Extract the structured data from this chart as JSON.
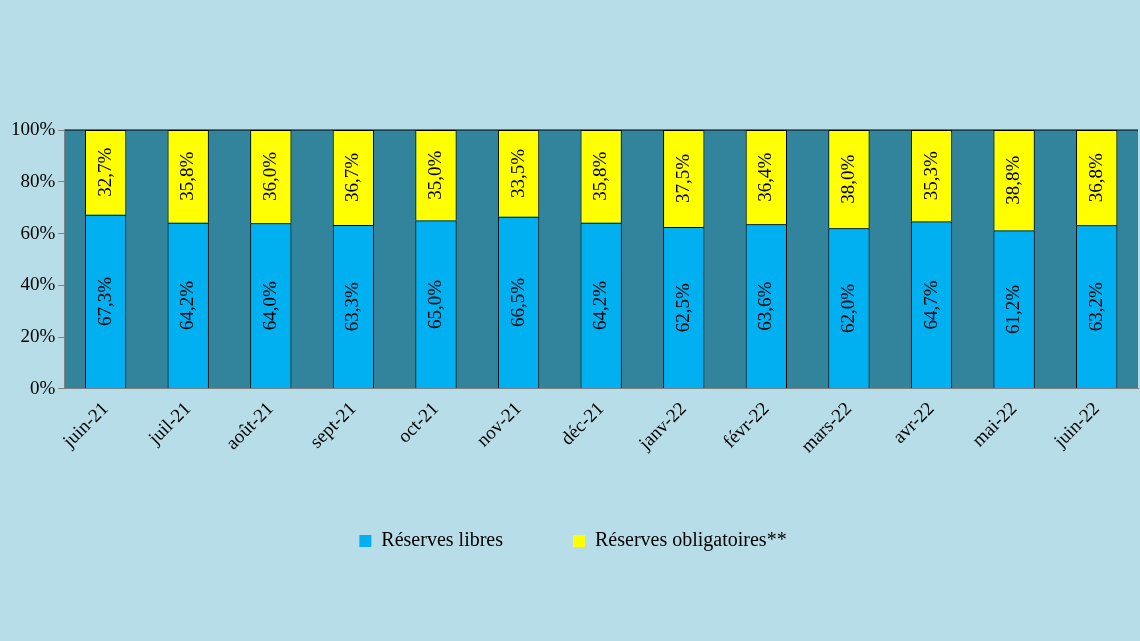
{
  "chart_data": {
    "type": "bar",
    "stacked": true,
    "categories": [
      "juin-21",
      "juil-21",
      "août-21",
      "sept-21",
      "oct-21",
      "nov-21",
      "déc-21",
      "janv-22",
      "févr-22",
      "mars-22",
      "avr-22",
      "mai-22",
      "juin-22"
    ],
    "series": [
      {
        "name": "Réserves libres",
        "color": "#00b0f0",
        "values": [
          67.3,
          64.2,
          64.0,
          63.3,
          65.0,
          66.5,
          64.2,
          62.5,
          63.6,
          62.0,
          64.7,
          61.2,
          63.2
        ],
        "value_labels": [
          "67,3%",
          "64,2%",
          "64,0%",
          "63,3%",
          "65,0%",
          "66,5%",
          "64,2%",
          "62,5%",
          "63,6%",
          "62,0%",
          "64,7%",
          "61,2%",
          "63,2%"
        ]
      },
      {
        "name": "Réserves obligatoires**",
        "color": "#ffff00",
        "values": [
          32.7,
          35.8,
          36.0,
          36.7,
          35.0,
          33.5,
          35.8,
          37.5,
          36.4,
          38.0,
          35.3,
          38.8,
          36.8
        ],
        "value_labels": [
          "32,7%",
          "35,8%",
          "36,0%",
          "36,7%",
          "35,0%",
          "33,5%",
          "35,8%",
          "37,5%",
          "36,4%",
          "38,0%",
          "35,3%",
          "38,8%",
          "36,8%"
        ]
      }
    ],
    "ylim": [
      0,
      100
    ],
    "yticks": [
      {
        "value": 0,
        "label": "0%"
      },
      {
        "value": 20,
        "label": "20%"
      },
      {
        "value": 40,
        "label": "40%"
      },
      {
        "value": 60,
        "label": "60%"
      },
      {
        "value": 80,
        "label": "80%"
      },
      {
        "value": 100,
        "label": "100%"
      }
    ],
    "grid": false,
    "legend": "bottom"
  }
}
